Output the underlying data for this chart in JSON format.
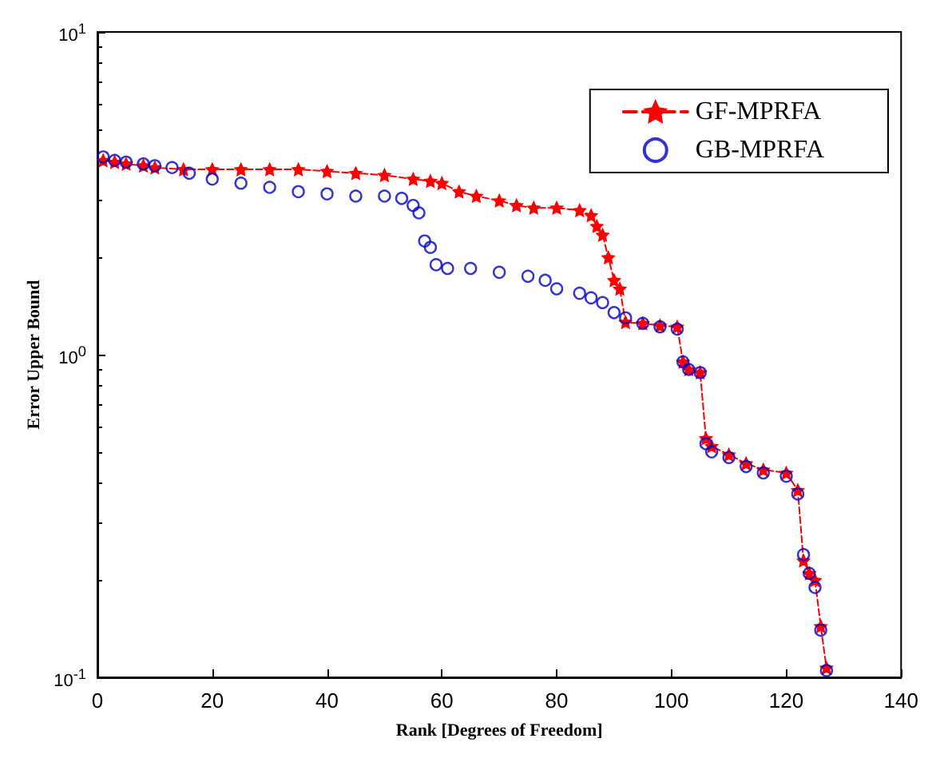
{
  "chart_data": {
    "type": "line",
    "xlabel": "Rank [Degrees of Freedom]",
    "ylabel": "Error Upper Bound",
    "log": "y",
    "xlim": [
      0,
      140
    ],
    "xticks": [
      0,
      20,
      40,
      60,
      80,
      100,
      120,
      140
    ],
    "ylim": [
      0.1,
      10
    ],
    "yticks": [
      {
        "value": 0.1,
        "label": "10$^{-1}$"
      },
      {
        "value": 1,
        "label": "10$^{0}$"
      },
      {
        "value": 10,
        "label": "10$^{1}$"
      }
    ],
    "grid": false,
    "legend": "top right",
    "series": [
      {
        "name": "GF-MPRFA",
        "type": "line",
        "color": "#ff0000",
        "marker": "star",
        "line_style": "dashed",
        "x": [
          1,
          3,
          5,
          8,
          10,
          15,
          20,
          25,
          30,
          35,
          40,
          45,
          50,
          55,
          58,
          60,
          63,
          66,
          70,
          73,
          76,
          80,
          84,
          86,
          87,
          88,
          89,
          90,
          91,
          92,
          95,
          98,
          101,
          102,
          103,
          105,
          106,
          107,
          110,
          113,
          116,
          120,
          122,
          123,
          124,
          125,
          126,
          127
        ],
        "values": [
          4.0,
          3.95,
          3.9,
          3.85,
          3.8,
          3.75,
          3.75,
          3.75,
          3.75,
          3.75,
          3.7,
          3.65,
          3.6,
          3.5,
          3.45,
          3.4,
          3.2,
          3.1,
          3.0,
          2.9,
          2.85,
          2.85,
          2.8,
          2.7,
          2.5,
          2.35,
          2.0,
          1.7,
          1.6,
          1.26,
          1.25,
          1.23,
          1.22,
          0.95,
          0.9,
          0.88,
          0.55,
          0.52,
          0.49,
          0.46,
          0.44,
          0.43,
          0.38,
          0.23,
          0.21,
          0.2,
          0.144,
          0.107
        ]
      },
      {
        "name": "GB-MPRFA",
        "type": "scatter",
        "color": "#0000cc",
        "marker": "circle",
        "x": [
          1,
          3,
          5,
          8,
          10,
          13,
          16,
          20,
          25,
          30,
          35,
          40,
          45,
          50,
          53,
          55,
          56,
          57,
          58,
          59,
          61,
          65,
          70,
          75,
          78,
          80,
          84,
          86,
          88,
          90,
          92,
          95,
          98,
          101,
          102,
          103,
          105,
          106,
          107,
          110,
          113,
          116,
          120,
          122,
          123,
          124,
          125,
          126,
          127
        ],
        "values": [
          4.1,
          4.0,
          3.95,
          3.9,
          3.85,
          3.8,
          3.65,
          3.5,
          3.4,
          3.3,
          3.2,
          3.15,
          3.1,
          3.1,
          3.05,
          2.9,
          2.75,
          2.25,
          2.15,
          1.9,
          1.85,
          1.85,
          1.8,
          1.75,
          1.7,
          1.6,
          1.55,
          1.5,
          1.45,
          1.35,
          1.3,
          1.25,
          1.22,
          1.2,
          0.95,
          0.9,
          0.88,
          0.53,
          0.5,
          0.48,
          0.45,
          0.43,
          0.42,
          0.37,
          0.24,
          0.21,
          0.19,
          0.14,
          0.105
        ]
      }
    ]
  }
}
